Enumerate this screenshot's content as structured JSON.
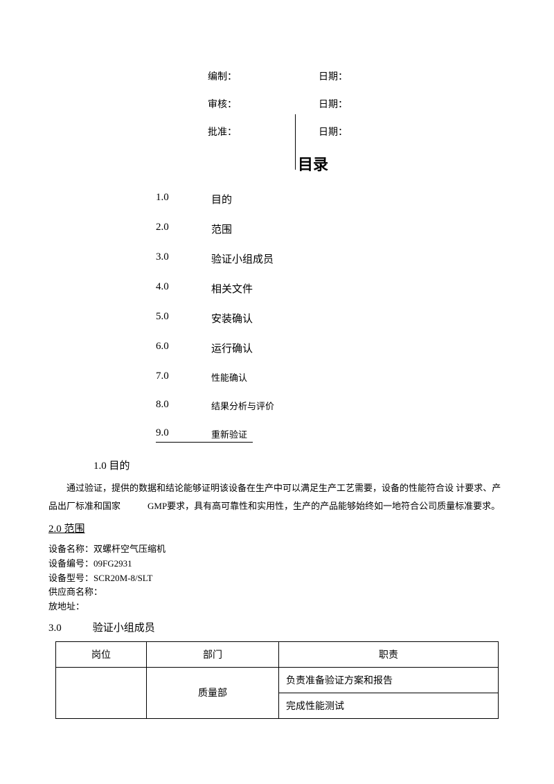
{
  "signatures": {
    "row1_label": "编制：",
    "row1_date": "日期：",
    "row2_label": "审核：",
    "row2_date": "日期：",
    "row3_label": "批准：",
    "row3_date": "日期："
  },
  "toc_title": "目录",
  "toc": [
    {
      "num": "1.0",
      "text": "目的",
      "small": false
    },
    {
      "num": "2.0",
      "text": "范围",
      "small": false
    },
    {
      "num": "3.0",
      "text": "验证小组成员",
      "small": false
    },
    {
      "num": "4.0",
      "text": "相关文件",
      "small": false
    },
    {
      "num": "5.0",
      "text": "安装确认",
      "small": false
    },
    {
      "num": "6.0",
      "text": "运行确认",
      "small": false
    },
    {
      "num": "7.0",
      "text": "性能确认",
      "small": true
    },
    {
      "num": "8.0",
      "text": "结果分析与评价",
      "small": true
    },
    {
      "num": "9.0",
      "text": "重新验证",
      "small": true,
      "underline": true
    }
  ],
  "s1": {
    "heading": "1.0 目的",
    "body": "通过验证，提供的数据和结论能够证明该设备在生产中可以满足生产工艺需要，设备的性能符合设 计要求、产品出厂标准和国家　　　GMP要求，具有高可靠性和实用性，生产的产品能够始终如一地符合公司质量标准要求。"
  },
  "s2": {
    "heading": "2.0 范围",
    "lines": [
      "设备名称：双螺杆空气压缩机",
      "设备编号：09FG2931",
      "设备型号：SCR20M-8/SLT",
      "供应商名称：",
      "放地址："
    ]
  },
  "s3": {
    "heading": "3.0　　　验证小组成员",
    "headers": [
      "岗位",
      "部门",
      "职责"
    ],
    "dept": "质量部",
    "resp1": "负责准备验证方案和报告",
    "resp2": "完成性能测试"
  }
}
